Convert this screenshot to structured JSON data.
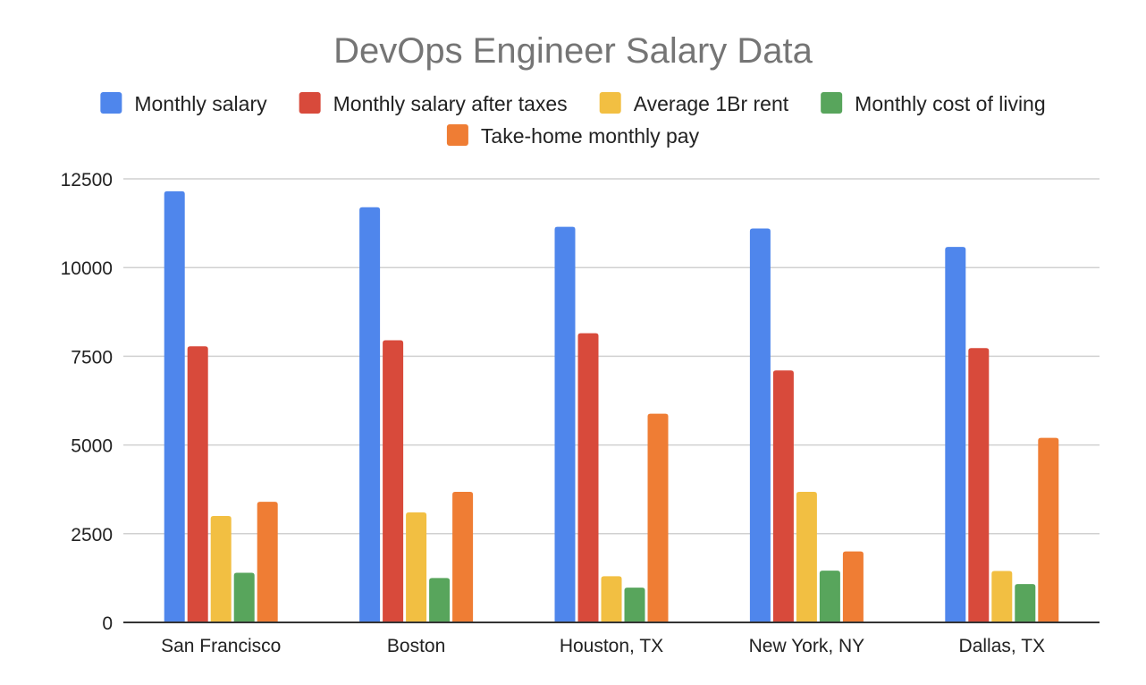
{
  "chart_data": {
    "type": "bar",
    "title": "DevOps Engineer Salary Data",
    "xlabel": "",
    "ylabel": "",
    "categories": [
      "San Francisco",
      "Boston",
      "Houston, TX",
      "New York, NY",
      "Dallas, TX"
    ],
    "series": [
      {
        "name": "Monthly salary",
        "color": "#4f86ec",
        "values": [
          12150,
          11700,
          11150,
          11100,
          10580
        ]
      },
      {
        "name": "Monthly salary after taxes",
        "color": "#d84a3b",
        "values": [
          7780,
          7950,
          8150,
          7100,
          7730
        ]
      },
      {
        "name": "Average 1Br rent",
        "color": "#f2bf42",
        "values": [
          3000,
          3100,
          1300,
          3680,
          1450
        ]
      },
      {
        "name": "Monthly cost of living",
        "color": "#58a55c",
        "values": [
          1400,
          1250,
          980,
          1460,
          1080
        ]
      },
      {
        "name": "Take-home monthly pay",
        "color": "#ef7d34",
        "values": [
          3400,
          3680,
          5880,
          2000,
          5200
        ]
      }
    ],
    "ylim": [
      0,
      12500
    ],
    "yticks": [
      0,
      2500,
      5000,
      7500,
      10000,
      12500
    ],
    "ytick_labels": [
      "0",
      "2500",
      "5000",
      "7500",
      "10000",
      "12500"
    ],
    "grid": true,
    "legend_position": "top"
  }
}
